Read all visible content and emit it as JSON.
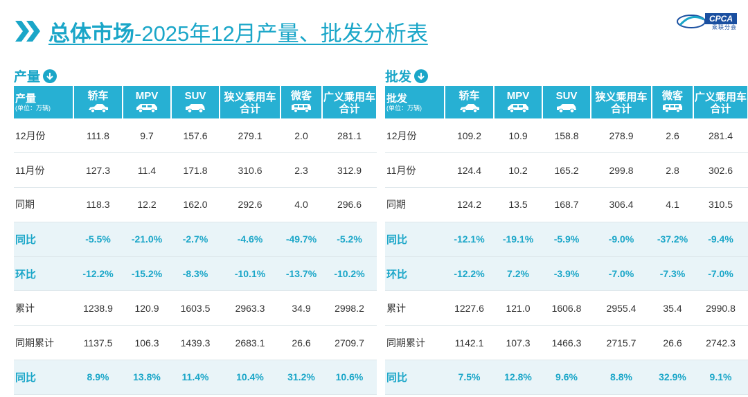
{
  "title": {
    "bold": "总体市场",
    "rest": "-2025年12月产量、批发分析表"
  },
  "logo": {
    "name": "CPCA",
    "sub": "乘联分会"
  },
  "colors": {
    "accent": "#1aa6c8",
    "header": "#27b0d3",
    "highlight_row": "#e9f4f8"
  },
  "production": {
    "label": "产量",
    "header": {
      "first": "产量",
      "unit": "(单位：万辆)",
      "cols": [
        {
          "l1": "轿车",
          "l2": "",
          "icon": "sedan-icon"
        },
        {
          "l1": "MPV",
          "l2": "",
          "icon": "mpv-icon"
        },
        {
          "l1": "SUV",
          "l2": "",
          "icon": "suv-icon"
        },
        {
          "l1": "狭义乘用车",
          "l2": "合计",
          "icon": ""
        },
        {
          "l1": "微客",
          "l2": "",
          "icon": "minivan-icon"
        },
        {
          "l1": "广义乘用车",
          "l2": "合计",
          "icon": ""
        }
      ]
    },
    "rows": [
      {
        "label": "12月份",
        "vals": [
          "111.8",
          "9.7",
          "157.6",
          "279.1",
          "2.0",
          "281.1"
        ],
        "hl": false
      },
      {
        "label": "11月份",
        "vals": [
          "127.3",
          "11.4",
          "171.8",
          "310.6",
          "2.3",
          "312.9"
        ],
        "hl": false
      },
      {
        "label": "同期",
        "vals": [
          "118.3",
          "12.2",
          "162.0",
          "292.6",
          "4.0",
          "296.6"
        ],
        "hl": false
      },
      {
        "label": "同比",
        "vals": [
          "-5.5%",
          "-21.0%",
          "-2.7%",
          "-4.6%",
          "-49.7%",
          "-5.2%"
        ],
        "hl": true
      },
      {
        "label": "环比",
        "vals": [
          "-12.2%",
          "-15.2%",
          "-8.3%",
          "-10.1%",
          "-13.7%",
          "-10.2%"
        ],
        "hl": true
      },
      {
        "label": "累计",
        "vals": [
          "1238.9",
          "120.9",
          "1603.5",
          "2963.3",
          "34.9",
          "2998.2"
        ],
        "hl": false
      },
      {
        "label": "同期累计",
        "vals": [
          "1137.5",
          "106.3",
          "1439.3",
          "2683.1",
          "26.6",
          "2709.7"
        ],
        "hl": false
      },
      {
        "label": "同比",
        "vals": [
          "8.9%",
          "13.8%",
          "11.4%",
          "10.4%",
          "31.2%",
          "10.6%"
        ],
        "hl": true
      }
    ]
  },
  "wholesale": {
    "label": "批发",
    "header": {
      "first": "批发",
      "unit": "(单位：万辆)",
      "cols": [
        {
          "l1": "轿车",
          "l2": "",
          "icon": "sedan-icon"
        },
        {
          "l1": "MPV",
          "l2": "",
          "icon": "mpv-icon"
        },
        {
          "l1": "SUV",
          "l2": "",
          "icon": "suv-icon"
        },
        {
          "l1": "狭义乘用车",
          "l2": "合计",
          "icon": ""
        },
        {
          "l1": "微客",
          "l2": "",
          "icon": "minivan-icon"
        },
        {
          "l1": "广义乘用车",
          "l2": "合计",
          "icon": ""
        }
      ]
    },
    "rows": [
      {
        "label": "12月份",
        "vals": [
          "109.2",
          "10.9",
          "158.8",
          "278.9",
          "2.6",
          "281.4"
        ],
        "hl": false
      },
      {
        "label": "11月份",
        "vals": [
          "124.4",
          "10.2",
          "165.2",
          "299.8",
          "2.8",
          "302.6"
        ],
        "hl": false
      },
      {
        "label": "同期",
        "vals": [
          "124.2",
          "13.5",
          "168.7",
          "306.4",
          "4.1",
          "310.5"
        ],
        "hl": false
      },
      {
        "label": "同比",
        "vals": [
          "-12.1%",
          "-19.1%",
          "-5.9%",
          "-9.0%",
          "-37.2%",
          "-9.4%"
        ],
        "hl": true
      },
      {
        "label": "环比",
        "vals": [
          "-12.2%",
          "7.2%",
          "-3.9%",
          "-7.0%",
          "-7.3%",
          "-7.0%"
        ],
        "hl": true
      },
      {
        "label": "累计",
        "vals": [
          "1227.6",
          "121.0",
          "1606.8",
          "2955.4",
          "35.4",
          "2990.8"
        ],
        "hl": false
      },
      {
        "label": "同期累计",
        "vals": [
          "1142.1",
          "107.3",
          "1466.3",
          "2715.7",
          "26.6",
          "2742.3"
        ],
        "hl": false
      },
      {
        "label": "同比",
        "vals": [
          "7.5%",
          "12.8%",
          "9.6%",
          "8.8%",
          "32.9%",
          "9.1%"
        ],
        "hl": true
      }
    ]
  }
}
